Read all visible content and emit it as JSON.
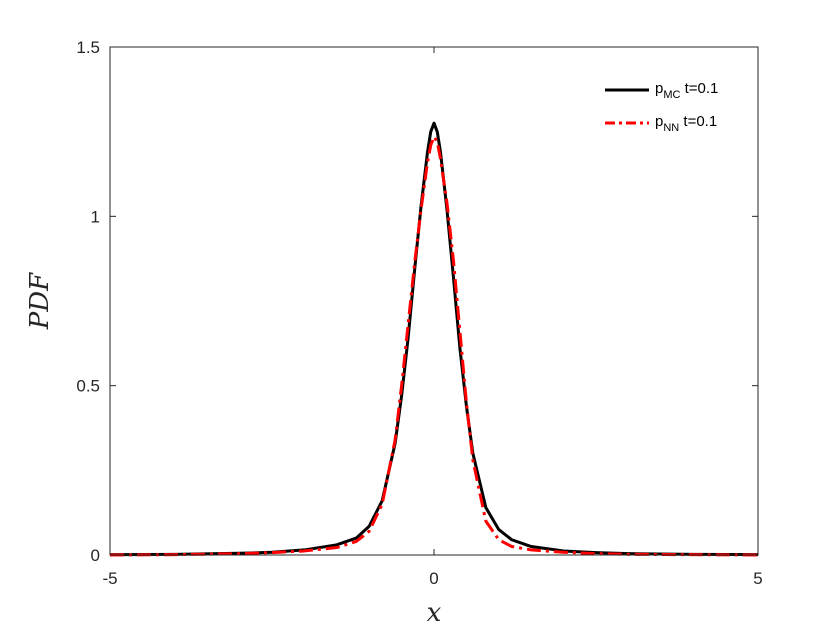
{
  "chart_data": {
    "type": "line",
    "title": "",
    "xlabel": "x",
    "ylabel": "PDF",
    "xlim": [
      -5,
      5
    ],
    "ylim": [
      0,
      1.5
    ],
    "xticks": [
      -5,
      0,
      5
    ],
    "xtick_labels": [
      "-5",
      "0",
      "5"
    ],
    "yticks": [
      0,
      0.5,
      1,
      1.5
    ],
    "ytick_labels": [
      "0",
      "0.5",
      "1",
      "1.5"
    ],
    "grid": false,
    "legend_position": "top-right",
    "series": [
      {
        "name_main": "p",
        "name_sub": "MC",
        "name_suffix": " t=0.1",
        "color": "#000000",
        "style": "solid",
        "x": [
          -5,
          -4,
          -3,
          -2.5,
          -2,
          -1.5,
          -1.2,
          -1.0,
          -0.8,
          -0.6,
          -0.5,
          -0.4,
          -0.3,
          -0.2,
          -0.1,
          -0.05,
          0,
          0.05,
          0.1,
          0.2,
          0.3,
          0.4,
          0.5,
          0.6,
          0.8,
          1.0,
          1.2,
          1.5,
          2,
          2.5,
          3,
          4,
          5
        ],
        "y": [
          0.001,
          0.002,
          0.005,
          0.008,
          0.015,
          0.03,
          0.05,
          0.085,
          0.16,
          0.33,
          0.47,
          0.64,
          0.84,
          1.03,
          1.19,
          1.25,
          1.275,
          1.25,
          1.19,
          1.02,
          0.82,
          0.61,
          0.44,
          0.3,
          0.14,
          0.075,
          0.045,
          0.025,
          0.012,
          0.007,
          0.004,
          0.002,
          0.001
        ]
      },
      {
        "name_main": "p",
        "name_sub": "NN",
        "name_suffix": " t=0.1",
        "color": "#ff0000",
        "style": "dashdot",
        "x": [
          -5,
          -4,
          -3,
          -2.5,
          -2,
          -1.5,
          -1.2,
          -1.0,
          -0.8,
          -0.6,
          -0.5,
          -0.4,
          -0.3,
          -0.2,
          -0.1,
          -0.05,
          0,
          0.05,
          0.1,
          0.2,
          0.3,
          0.4,
          0.5,
          0.6,
          0.8,
          1.0,
          1.2,
          1.5,
          2,
          2.5,
          3,
          4,
          5
        ],
        "y": [
          0.0,
          0.001,
          0.004,
          0.007,
          0.012,
          0.022,
          0.04,
          0.07,
          0.15,
          0.34,
          0.5,
          0.68,
          0.86,
          1.02,
          1.16,
          1.21,
          1.235,
          1.22,
          1.17,
          1.04,
          0.87,
          0.66,
          0.45,
          0.28,
          0.1,
          0.045,
          0.025,
          0.015,
          0.008,
          0.004,
          0.002,
          0.001,
          0.0
        ]
      }
    ]
  }
}
